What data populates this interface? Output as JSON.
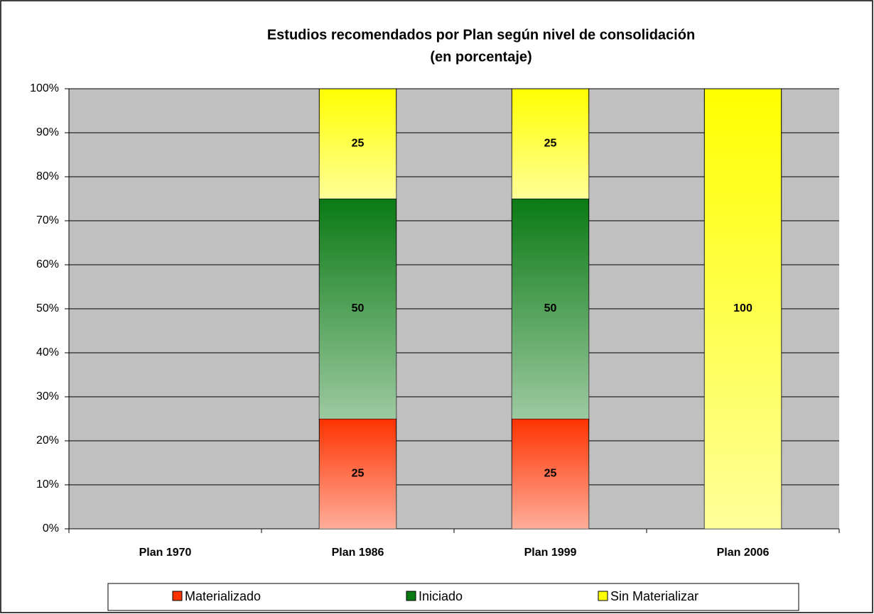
{
  "chart_data": {
    "type": "stacked_bar",
    "title": "Estudios recomendados por Plan según nivel de consolidación",
    "subtitle": "(en porcentaje)",
    "categories": [
      "Plan 1970",
      "Plan 1986",
      "Plan 1999",
      "Plan 2006"
    ],
    "series": [
      {
        "name": "Materializado",
        "color": "#ff3300",
        "values": [
          0,
          25,
          25,
          0
        ]
      },
      {
        "name": "Iniciado",
        "color": "#0a7a14",
        "values": [
          0,
          50,
          50,
          0
        ]
      },
      {
        "name": "Sin Materializar",
        "color": "#ffff00",
        "values": [
          0,
          25,
          25,
          100
        ]
      }
    ],
    "ylim": [
      0,
      100
    ],
    "yticks": [
      {
        "value": 0,
        "label": "0%"
      },
      {
        "value": 10,
        "label": "10%"
      },
      {
        "value": 20,
        "label": "20%"
      },
      {
        "value": 30,
        "label": "30%"
      },
      {
        "value": 40,
        "label": "40%"
      },
      {
        "value": 50,
        "label": "50%"
      },
      {
        "value": 60,
        "label": "60%"
      },
      {
        "value": 70,
        "label": "70%"
      },
      {
        "value": 80,
        "label": "80%"
      },
      {
        "value": 90,
        "label": "90%"
      },
      {
        "value": 100,
        "label": "100%"
      }
    ],
    "grid": true,
    "legend": "bottom"
  }
}
